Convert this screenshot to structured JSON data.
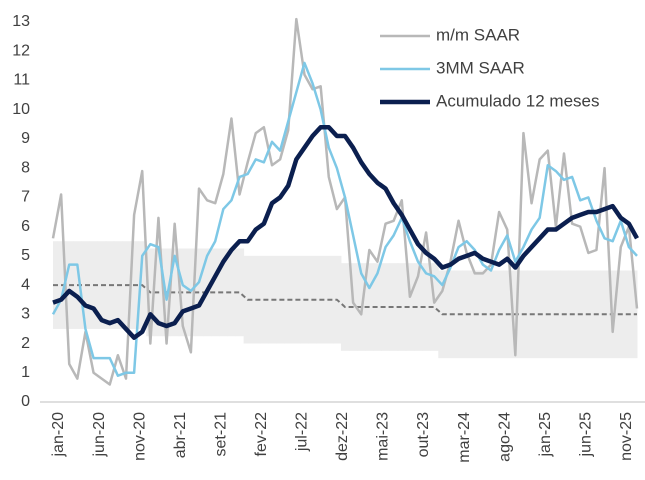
{
  "chart_data": {
    "type": "line",
    "categories": [
      "jan-20",
      null,
      null,
      null,
      null,
      "jun-20",
      null,
      null,
      null,
      null,
      "nov-20",
      null,
      null,
      null,
      null,
      "abr-21",
      null,
      null,
      null,
      null,
      "set-21",
      null,
      null,
      null,
      null,
      "fev-22",
      null,
      null,
      null,
      null,
      "jul-22",
      null,
      null,
      null,
      null,
      "dez-22",
      null,
      null,
      null,
      null,
      "mai-23",
      null,
      null,
      null,
      null,
      "out-23",
      null,
      null,
      null,
      null,
      "mar-24",
      null,
      null,
      null,
      null,
      "ago-24",
      null,
      null,
      null,
      null,
      "jan-25",
      null,
      null,
      null,
      null,
      "jun-25",
      null,
      null,
      null,
      null,
      "nov-25",
      null,
      null
    ],
    "series": [
      {
        "name": "m/m SAAR",
        "color": "#b8b8b8",
        "width": 2.5,
        "values": [
          5.6,
          7.1,
          1.3,
          0.8,
          2.4,
          1.0,
          0.8,
          0.6,
          1.6,
          0.8,
          6.4,
          7.9,
          2.0,
          6.3,
          2.0,
          6.1,
          2.6,
          1.7,
          7.3,
          6.9,
          6.8,
          7.8,
          9.7,
          7.1,
          8.2,
          9.2,
          9.4,
          8.1,
          8.3,
          9.3,
          13.1,
          11.2,
          10.7,
          10.8,
          7.7,
          6.6,
          7.0,
          3.4,
          3.0,
          5.2,
          4.8,
          6.1,
          6.2,
          6.9,
          3.6,
          4.3,
          5.8,
          3.4,
          3.8,
          4.8,
          6.2,
          5.1,
          4.4,
          4.4,
          4.7,
          6.5,
          5.9,
          1.6,
          9.2,
          6.8,
          8.3,
          8.6,
          6.0,
          8.5,
          6.1,
          6.0,
          5.1,
          5.2,
          8.0,
          2.4,
          5.3,
          6.0,
          3.2
        ]
      },
      {
        "name": "3MM SAAR",
        "color": "#7ec8e6",
        "width": 2.5,
        "values": [
          3.0,
          3.5,
          4.7,
          4.7,
          2.5,
          1.5,
          1.5,
          1.5,
          0.9,
          1.0,
          1.0,
          5.0,
          5.4,
          5.3,
          3.5,
          5.0,
          4.0,
          3.8,
          4.1,
          5.0,
          5.5,
          6.6,
          6.9,
          7.7,
          7.8,
          8.3,
          8.2,
          8.9,
          8.6,
          9.6,
          10.6,
          11.6,
          10.9,
          10.0,
          8.7,
          8.0,
          7.0,
          5.7,
          4.4,
          3.9,
          4.4,
          5.3,
          5.7,
          6.3,
          5.5,
          4.8,
          4.4,
          4.3,
          4.0,
          4.6,
          5.3,
          5.5,
          5.2,
          4.7,
          4.5,
          5.2,
          5.7,
          4.8,
          5.3,
          5.9,
          6.3,
          8.1,
          7.9,
          7.6,
          7.7,
          6.9,
          7.0,
          6.2,
          5.6,
          5.5,
          6.2,
          5.3,
          5.0
        ]
      },
      {
        "name": "Acumulado 12 meses",
        "color": "#0b1f4f",
        "width": 4.5,
        "values": [
          3.4,
          3.5,
          3.8,
          3.6,
          3.3,
          3.2,
          2.8,
          2.7,
          2.8,
          2.5,
          2.2,
          2.4,
          3.0,
          2.7,
          2.6,
          2.7,
          3.1,
          3.2,
          3.3,
          3.8,
          4.3,
          4.8,
          5.2,
          5.5,
          5.5,
          5.9,
          6.1,
          6.8,
          7.0,
          7.4,
          8.3,
          8.7,
          9.1,
          9.4,
          9.4,
          9.1,
          9.1,
          8.7,
          8.2,
          7.8,
          7.5,
          7.3,
          6.8,
          6.4,
          5.9,
          5.4,
          5.1,
          4.9,
          4.6,
          4.7,
          4.9,
          5.0,
          5.1,
          4.9,
          4.8,
          4.7,
          4.9,
          4.6,
          5.0,
          5.3,
          5.6,
          5.9,
          5.9,
          6.1,
          6.3,
          6.4,
          6.5,
          6.5,
          6.6,
          6.7,
          6.3,
          6.1,
          5.6
        ]
      }
    ],
    "target_band": {
      "band_color": "#ededed",
      "line_color": "#777777",
      "center": [
        4,
        4,
        4,
        4,
        4,
        4,
        4,
        4,
        4,
        4,
        4,
        4,
        3.75,
        3.75,
        3.75,
        3.75,
        3.75,
        3.75,
        3.75,
        3.75,
        3.75,
        3.75,
        3.75,
        3.75,
        3.5,
        3.5,
        3.5,
        3.5,
        3.5,
        3.5,
        3.5,
        3.5,
        3.5,
        3.5,
        3.5,
        3.5,
        3.25,
        3.25,
        3.25,
        3.25,
        3.25,
        3.25,
        3.25,
        3.25,
        3.25,
        3.25,
        3.25,
        3.25,
        3,
        3,
        3,
        3,
        3,
        3,
        3,
        3,
        3,
        3,
        3,
        3,
        3,
        3,
        3,
        3,
        3,
        3,
        3,
        3,
        3,
        3,
        3,
        3,
        3
      ],
      "lower": [
        2.5,
        2.5,
        2.5,
        2.5,
        2.5,
        2.5,
        2.5,
        2.5,
        2.5,
        2.5,
        2.5,
        2.5,
        2.25,
        2.25,
        2.25,
        2.25,
        2.25,
        2.25,
        2.25,
        2.25,
        2.25,
        2.25,
        2.25,
        2.25,
        2,
        2,
        2,
        2,
        2,
        2,
        2,
        2,
        2,
        2,
        2,
        2,
        1.75,
        1.75,
        1.75,
        1.75,
        1.75,
        1.75,
        1.75,
        1.75,
        1.75,
        1.75,
        1.75,
        1.75,
        1.5,
        1.5,
        1.5,
        1.5,
        1.5,
        1.5,
        1.5,
        1.5,
        1.5,
        1.5,
        1.5,
        1.5,
        1.5,
        1.5,
        1.5,
        1.5,
        1.5,
        1.5,
        1.5,
        1.5,
        1.5,
        1.5,
        1.5,
        1.5,
        1.5
      ],
      "upper": [
        5.5,
        5.5,
        5.5,
        5.5,
        5.5,
        5.5,
        5.5,
        5.5,
        5.5,
        5.5,
        5.5,
        5.5,
        5.25,
        5.25,
        5.25,
        5.25,
        5.25,
        5.25,
        5.25,
        5.25,
        5.25,
        5.25,
        5.25,
        5.25,
        5,
        5,
        5,
        5,
        5,
        5,
        5,
        5,
        5,
        5,
        5,
        5,
        4.75,
        4.75,
        4.75,
        4.75,
        4.75,
        4.75,
        4.75,
        4.75,
        4.75,
        4.75,
        4.75,
        4.75,
        4.5,
        4.5,
        4.5,
        4.5,
        4.5,
        4.5,
        4.5,
        4.5,
        4.5,
        4.5,
        4.5,
        4.5,
        4.5,
        4.5,
        4.5,
        4.5,
        4.5,
        4.5,
        4.5,
        4.5,
        4.5,
        4.5,
        4.5,
        4.5,
        4.5
      ]
    },
    "ylim": [
      0,
      13
    ],
    "yticks": [
      0,
      1,
      2,
      3,
      4,
      5,
      6,
      7,
      8,
      9,
      10,
      11,
      12,
      13
    ],
    "legend": "upper right"
  }
}
